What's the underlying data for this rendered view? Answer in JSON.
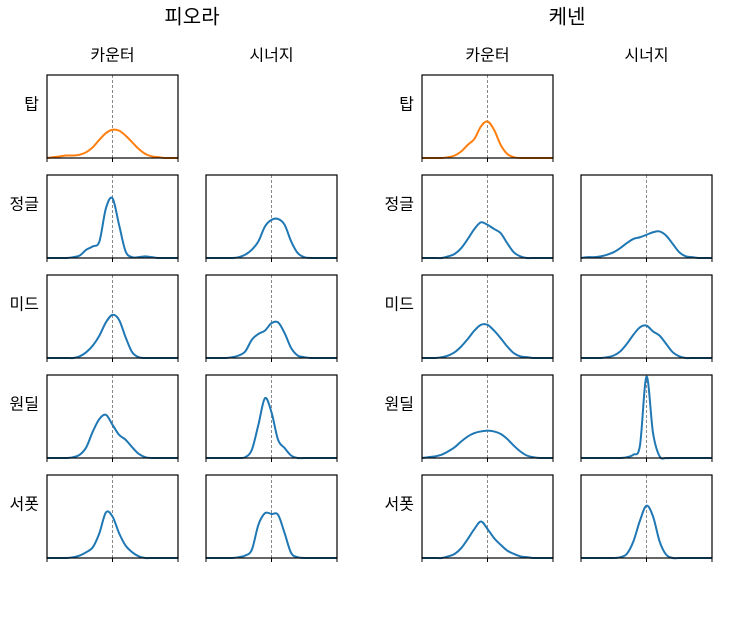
{
  "groups": [
    {
      "title": "피오라",
      "columns": [
        "카운터",
        "시너지"
      ],
      "rows": [
        "탑",
        "정글",
        "미드",
        "원딜",
        "서폿"
      ]
    },
    {
      "title": "케넨",
      "columns": [
        "카운터",
        "시너지"
      ],
      "rows": [
        "탑",
        "정글",
        "미드",
        "원딜",
        "서폿"
      ]
    }
  ],
  "chart_data": [
    {
      "type": "line",
      "color": "#ff7f0e",
      "x": [
        -1,
        -0.9,
        -0.8,
        -0.7,
        -0.6,
        -0.5,
        -0.4,
        -0.3,
        -0.2,
        -0.1,
        0,
        0.1,
        0.2,
        0.3,
        0.4,
        0.5,
        0.6,
        0.7,
        0.8,
        0.9,
        1
      ],
      "values": [
        0,
        0.01,
        0.02,
        0.03,
        0.03,
        0.04,
        0.07,
        0.13,
        0.22,
        0.3,
        0.34,
        0.33,
        0.27,
        0.19,
        0.11,
        0.05,
        0.02,
        0.01,
        0,
        0,
        0
      ],
      "xlim": [
        -1,
        1
      ],
      "ylim": [
        0,
        1
      ],
      "xticks": [
        -1,
        0,
        1
      ],
      "vline": 0
    },
    {
      "type": "line",
      "color": "#1f77b4",
      "x": [
        -1,
        -0.9,
        -0.8,
        -0.7,
        -0.6,
        -0.5,
        -0.4,
        -0.3,
        -0.2,
        -0.1,
        0,
        0.1,
        0.2,
        0.3,
        0.4,
        0.5,
        0.6,
        0.7,
        0.8,
        0.9,
        1
      ],
      "values": [
        0,
        0,
        0,
        0,
        0.01,
        0.03,
        0.1,
        0.14,
        0.2,
        0.6,
        0.72,
        0.4,
        0.08,
        0.01,
        0.01,
        0.02,
        0.01,
        0,
        0,
        0,
        0
      ],
      "xlim": [
        -1,
        1
      ],
      "ylim": [
        0,
        1
      ],
      "xticks": [
        -1,
        0,
        1
      ],
      "vline": 0
    },
    {
      "type": "line",
      "color": "#1f77b4",
      "x": [
        -1,
        -0.9,
        -0.8,
        -0.7,
        -0.6,
        -0.5,
        -0.4,
        -0.3,
        -0.2,
        -0.1,
        0,
        0.1,
        0.2,
        0.3,
        0.4,
        0.5,
        0.6,
        0.7,
        0.8,
        0.9,
        1
      ],
      "values": [
        0,
        0,
        0,
        0,
        0,
        0.01,
        0.04,
        0.1,
        0.2,
        0.38,
        0.46,
        0.47,
        0.4,
        0.2,
        0.06,
        0.01,
        0,
        0,
        0,
        0,
        0
      ],
      "xlim": [
        -1,
        1
      ],
      "ylim": [
        0,
        1
      ],
      "xticks": [
        -1,
        0,
        1
      ],
      "vline": 0
    },
    {
      "type": "line",
      "color": "#1f77b4",
      "x": [
        -1,
        -0.9,
        -0.8,
        -0.7,
        -0.6,
        -0.5,
        -0.4,
        -0.3,
        -0.2,
        -0.1,
        0,
        0.1,
        0.2,
        0.3,
        0.4,
        0.5,
        0.6,
        0.7,
        0.8,
        0.9,
        1
      ],
      "values": [
        0,
        0,
        0,
        0,
        0,
        0.02,
        0.07,
        0.15,
        0.27,
        0.43,
        0.52,
        0.46,
        0.25,
        0.07,
        0.01,
        0,
        0,
        0,
        0,
        0,
        0
      ],
      "xlim": [
        -1,
        1
      ],
      "ylim": [
        0,
        1
      ],
      "xticks": [
        -1,
        0,
        1
      ],
      "vline": 0
    },
    {
      "type": "line",
      "color": "#1f77b4",
      "x": [
        -1,
        -0.9,
        -0.8,
        -0.7,
        -0.6,
        -0.5,
        -0.4,
        -0.3,
        -0.2,
        -0.1,
        0,
        0.1,
        0.2,
        0.3,
        0.4,
        0.5,
        0.6,
        0.7,
        0.8,
        0.9,
        1
      ],
      "values": [
        0,
        0,
        0,
        0,
        0.01,
        0.03,
        0.08,
        0.22,
        0.29,
        0.33,
        0.42,
        0.43,
        0.3,
        0.12,
        0.03,
        0.01,
        0,
        0,
        0,
        0,
        0
      ],
      "xlim": [
        -1,
        1
      ],
      "ylim": [
        0,
        1
      ],
      "xticks": [
        -1,
        0,
        1
      ],
      "vline": 0
    },
    {
      "type": "line",
      "color": "#1f77b4",
      "x": [
        -1,
        -0.9,
        -0.8,
        -0.7,
        -0.6,
        -0.5,
        -0.4,
        -0.3,
        -0.2,
        -0.1,
        0,
        0.1,
        0.2,
        0.3,
        0.4,
        0.5,
        0.6,
        0.7,
        0.8,
        0.9,
        1
      ],
      "values": [
        0,
        0,
        0,
        0,
        0.01,
        0.04,
        0.13,
        0.32,
        0.47,
        0.52,
        0.4,
        0.28,
        0.22,
        0.13,
        0.05,
        0.01,
        0,
        0,
        0,
        0,
        0
      ],
      "xlim": [
        -1,
        1
      ],
      "ylim": [
        0,
        1
      ],
      "xticks": [
        -1,
        0,
        1
      ],
      "vline": 0
    },
    {
      "type": "line",
      "color": "#1f77b4",
      "x": [
        -1,
        -0.9,
        -0.8,
        -0.7,
        -0.6,
        -0.5,
        -0.4,
        -0.3,
        -0.2,
        -0.1,
        0,
        0.1,
        0.2,
        0.3,
        0.4,
        0.5,
        0.6,
        0.7,
        0.8,
        0.9,
        1
      ],
      "values": [
        0,
        0,
        0,
        0,
        0,
        0,
        0.01,
        0.1,
        0.4,
        0.72,
        0.55,
        0.22,
        0.12,
        0.03,
        0,
        0,
        0,
        0,
        0,
        0,
        0
      ],
      "xlim": [
        -1,
        1
      ],
      "ylim": [
        0,
        1
      ],
      "xticks": [
        -1,
        0,
        1
      ],
      "vline": 0
    },
    {
      "type": "line",
      "color": "#1f77b4",
      "x": [
        -1,
        -0.9,
        -0.8,
        -0.7,
        -0.6,
        -0.5,
        -0.4,
        -0.3,
        -0.2,
        -0.1,
        0,
        0.1,
        0.2,
        0.3,
        0.4,
        0.5,
        0.6,
        0.7,
        0.8,
        0.9,
        1
      ],
      "values": [
        0,
        0,
        0,
        0,
        0.01,
        0.03,
        0.07,
        0.13,
        0.3,
        0.55,
        0.5,
        0.3,
        0.15,
        0.07,
        0.02,
        0,
        0,
        0,
        0,
        0,
        0
      ],
      "xlim": [
        -1,
        1
      ],
      "ylim": [
        0,
        1
      ],
      "xticks": [
        -1,
        0,
        1
      ],
      "vline": 0
    },
    {
      "type": "line",
      "color": "#1f77b4",
      "x": [
        -1,
        -0.9,
        -0.8,
        -0.7,
        -0.6,
        -0.5,
        -0.4,
        -0.3,
        -0.2,
        -0.1,
        0,
        0.1,
        0.2,
        0.3,
        0.4,
        0.5,
        0.6,
        0.7,
        0.8,
        0.9,
        1
      ],
      "values": [
        0,
        0,
        0,
        0,
        0,
        0.01,
        0.03,
        0.1,
        0.4,
        0.54,
        0.53,
        0.52,
        0.3,
        0.06,
        0.01,
        0,
        0,
        0,
        0,
        0,
        0
      ],
      "xlim": [
        -1,
        1
      ],
      "ylim": [
        0,
        1
      ],
      "xticks": [
        -1,
        0,
        1
      ],
      "vline": 0
    },
    {
      "type": "line",
      "color": "#ff7f0e",
      "x": [
        -1,
        -0.9,
        -0.8,
        -0.7,
        -0.6,
        -0.5,
        -0.4,
        -0.3,
        -0.2,
        -0.1,
        0,
        0.1,
        0.2,
        0.3,
        0.4,
        0.5,
        0.6,
        0.7,
        0.8,
        0.9,
        1
      ],
      "values": [
        0,
        0,
        0,
        0,
        0.01,
        0.03,
        0.08,
        0.16,
        0.23,
        0.38,
        0.44,
        0.34,
        0.16,
        0.05,
        0.01,
        0,
        0,
        0,
        0,
        0,
        0
      ],
      "xlim": [
        -1,
        1
      ],
      "ylim": [
        0,
        1
      ],
      "xticks": [
        -1,
        0,
        1
      ],
      "vline": 0
    },
    {
      "type": "line",
      "color": "#1f77b4",
      "x": [
        -1,
        -0.9,
        -0.8,
        -0.7,
        -0.6,
        -0.5,
        -0.4,
        -0.3,
        -0.2,
        -0.1,
        0,
        0.1,
        0.2,
        0.3,
        0.4,
        0.5,
        0.6,
        0.7,
        0.8,
        0.9,
        1
      ],
      "values": [
        0,
        0,
        0,
        0,
        0.02,
        0.05,
        0.12,
        0.23,
        0.35,
        0.43,
        0.4,
        0.35,
        0.3,
        0.18,
        0.07,
        0.02,
        0,
        0,
        0,
        0,
        0
      ],
      "xlim": [
        -1,
        1
      ],
      "ylim": [
        0,
        1
      ],
      "xticks": [
        -1,
        0,
        1
      ],
      "vline": 0
    },
    {
      "type": "line",
      "color": "#1f77b4",
      "x": [
        -1,
        -0.9,
        -0.8,
        -0.7,
        -0.6,
        -0.5,
        -0.4,
        -0.3,
        -0.2,
        -0.1,
        0,
        0.1,
        0.2,
        0.3,
        0.4,
        0.5,
        0.6,
        0.7,
        0.8,
        0.9,
        1
      ],
      "values": [
        0,
        0.01,
        0.01,
        0.02,
        0.04,
        0.07,
        0.12,
        0.18,
        0.23,
        0.25,
        0.28,
        0.31,
        0.32,
        0.27,
        0.17,
        0.07,
        0.02,
        0.01,
        0,
        0,
        0
      ],
      "xlim": [
        -1,
        1
      ],
      "ylim": [
        0,
        1
      ],
      "xticks": [
        -1,
        0,
        1
      ],
      "vline": 0
    },
    {
      "type": "line",
      "color": "#1f77b4",
      "x": [
        -1,
        -0.9,
        -0.8,
        -0.7,
        -0.6,
        -0.5,
        -0.4,
        -0.3,
        -0.2,
        -0.1,
        0,
        0.1,
        0.2,
        0.3,
        0.4,
        0.5,
        0.6,
        0.7,
        0.8,
        0.9,
        1
      ],
      "values": [
        0,
        0,
        0,
        0.01,
        0.03,
        0.07,
        0.14,
        0.23,
        0.33,
        0.4,
        0.4,
        0.33,
        0.24,
        0.14,
        0.06,
        0.02,
        0.01,
        0,
        0,
        0,
        0
      ],
      "xlim": [
        -1,
        1
      ],
      "ylim": [
        0,
        1
      ],
      "xticks": [
        -1,
        0,
        1
      ],
      "vline": 0
    },
    {
      "type": "line",
      "color": "#1f77b4",
      "x": [
        -1,
        -0.9,
        -0.8,
        -0.7,
        -0.6,
        -0.5,
        -0.4,
        -0.3,
        -0.2,
        -0.1,
        0,
        0.1,
        0.2,
        0.3,
        0.4,
        0.5,
        0.6,
        0.7,
        0.8,
        0.9,
        1
      ],
      "values": [
        0,
        0,
        0,
        0,
        0.01,
        0.03,
        0.08,
        0.17,
        0.28,
        0.37,
        0.39,
        0.32,
        0.27,
        0.17,
        0.07,
        0.02,
        0,
        0,
        0,
        0,
        0
      ],
      "xlim": [
        -1,
        1
      ],
      "ylim": [
        0,
        1
      ],
      "xticks": [
        -1,
        0,
        1
      ],
      "vline": 0
    },
    {
      "type": "line",
      "color": "#1f77b4",
      "x": [
        -1,
        -0.9,
        -0.8,
        -0.7,
        -0.6,
        -0.5,
        -0.4,
        -0.3,
        -0.2,
        -0.1,
        0,
        0.1,
        0.2,
        0.3,
        0.4,
        0.5,
        0.6,
        0.7,
        0.8,
        0.9,
        1
      ],
      "values": [
        0,
        0.01,
        0.02,
        0.04,
        0.08,
        0.13,
        0.2,
        0.26,
        0.3,
        0.32,
        0.33,
        0.32,
        0.29,
        0.23,
        0.15,
        0.08,
        0.03,
        0.01,
        0,
        0,
        0
      ],
      "xlim": [
        -1,
        1
      ],
      "ylim": [
        0,
        1
      ],
      "xticks": [
        -1,
        0,
        1
      ],
      "vline": 0
    },
    {
      "type": "line",
      "color": "#1f77b4",
      "x": [
        -1,
        -0.9,
        -0.8,
        -0.7,
        -0.6,
        -0.5,
        -0.4,
        -0.3,
        -0.2,
        -0.1,
        0,
        0.1,
        0.2,
        0.3,
        0.4,
        0.5,
        0.6,
        0.7,
        0.8,
        0.9,
        1
      ],
      "values": [
        0,
        0,
        0,
        0,
        0,
        0,
        0,
        0.01,
        0.04,
        0.15,
        0.98,
        0.3,
        0.02,
        0,
        0,
        0,
        0,
        0,
        0,
        0,
        0
      ],
      "xlim": [
        -1,
        1
      ],
      "ylim": [
        0,
        1
      ],
      "xticks": [
        -1,
        0,
        1
      ],
      "vline": 0
    },
    {
      "type": "line",
      "color": "#1f77b4",
      "x": [
        -1,
        -0.9,
        -0.8,
        -0.7,
        -0.6,
        -0.5,
        -0.4,
        -0.3,
        -0.2,
        -0.1,
        0,
        0.1,
        0.2,
        0.3,
        0.4,
        0.5,
        0.6,
        0.7,
        0.8,
        0.9,
        1
      ],
      "values": [
        0,
        0,
        0,
        0,
        0.02,
        0.05,
        0.12,
        0.23,
        0.35,
        0.44,
        0.35,
        0.24,
        0.16,
        0.09,
        0.05,
        0.02,
        0.01,
        0,
        0,
        0,
        0
      ],
      "xlim": [
        -1,
        1
      ],
      "ylim": [
        0,
        1
      ],
      "xticks": [
        -1,
        0,
        1
      ],
      "vline": 0
    },
    {
      "type": "line",
      "color": "#1f77b4",
      "x": [
        -1,
        -0.9,
        -0.8,
        -0.7,
        -0.6,
        -0.5,
        -0.4,
        -0.3,
        -0.2,
        -0.1,
        0,
        0.1,
        0.2,
        0.3,
        0.4,
        0.5,
        0.6,
        0.7,
        0.8,
        0.9,
        1
      ],
      "values": [
        0,
        0,
        0,
        0,
        0,
        0,
        0.01,
        0.05,
        0.2,
        0.45,
        0.63,
        0.5,
        0.2,
        0.04,
        0,
        0,
        0,
        0,
        0,
        0,
        0
      ],
      "xlim": [
        -1,
        1
      ],
      "ylim": [
        0,
        1
      ],
      "xticks": [
        -1,
        0,
        1
      ],
      "vline": 0
    }
  ]
}
